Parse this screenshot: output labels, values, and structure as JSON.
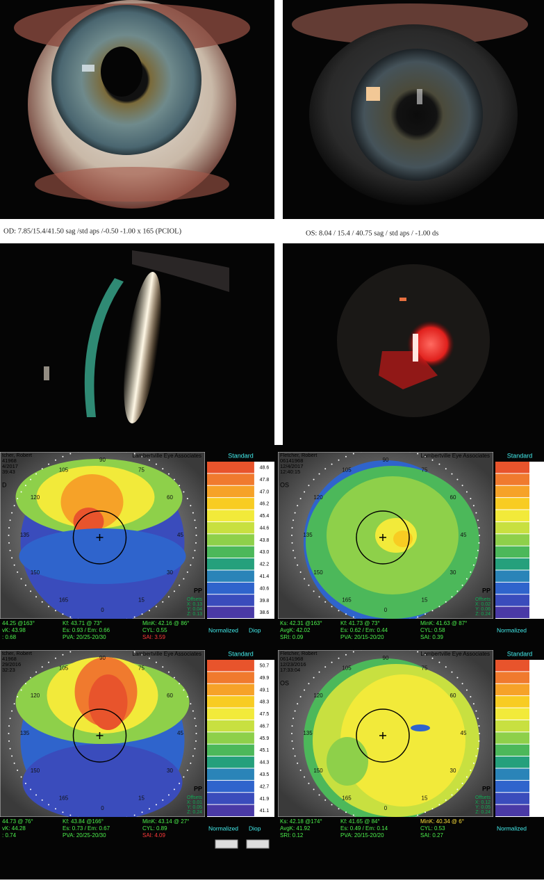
{
  "captions": [
    "OD: 7.85/15.4/41.50 sag  /std aps /-0.50 -1.00 x 165  (PCIOL)",
    "OS: 8.04 / 15.4 / 40.75 sag / std aps /  -1.00 ds"
  ],
  "angle_labels": [
    "90",
    "105",
    "120",
    "135",
    "150",
    "165",
    "0",
    "15",
    "30",
    "45",
    "60",
    "75"
  ],
  "topography": [
    {
      "header": [
        "tcher, Robert",
        "41968",
        "4/2017",
        "39:43"
      ],
      "clinic": "Lambertville Eye Associates",
      "eye": "D",
      "pp": "PP",
      "scale_title": "Standard",
      "scale_labels": [
        "48.6",
        "47.8",
        "47.0",
        "46.2",
        "45.4",
        "44.6",
        "43.8",
        "43.0",
        "42.2",
        "41.4",
        "40.6",
        "39.8",
        "38.6"
      ],
      "offsets": [
        "Offsets",
        "X: 0.13",
        "Y: 0.04",
        "Z: 0.13"
      ],
      "rows": [
        [
          "44.25 @163°",
          "Kf: 43.71 @ 73°",
          "MinK: 42.16 @ 86°"
        ],
        [
          "vK: 43.98",
          "Es: 0.93 / Em: 0.66",
          "CYL: 0.55"
        ],
        [
          ": 0.68",
          "PVA: 20/25-20/30",
          {
            "text": "SAI: 3.59",
            "color": "#ff3b3b"
          }
        ]
      ],
      "footer": [
        "Normalized",
        "Diop"
      ]
    },
    {
      "header": [
        "Fletcher, Robert",
        "06141968",
        "12/4/2017",
        "12:40:15"
      ],
      "clinic": "Lambertville Eye Associates",
      "eye": "OS",
      "pp": "PP",
      "scale_title": "Standard",
      "scale_labels": [],
      "offsets": [
        "Offsets",
        "X: 0.02",
        "Y: 0.06",
        "Z: 0.24"
      ],
      "rows": [
        [
          "Ks: 42.31 @163°",
          "Kf: 41.73 @ 73°",
          "MinK: 41.63 @ 87°"
        ],
        [
          "AvgK: 42.02",
          "Es: 0.62 / Em: 0.44",
          "CYL: 0.58"
        ],
        [
          "SRI: 0.09",
          "PVA: 20/15-20/20",
          "SAI: 0.39"
        ]
      ],
      "footer": [
        "Normalized"
      ]
    },
    {
      "header": [
        "tcher, Robert",
        "41968",
        "29/2016",
        "32:23"
      ],
      "clinic": "Lambertville Eye Associates",
      "eye": "",
      "pp": "PP",
      "scale_title": "Standard",
      "scale_labels": [
        "50.7",
        "49.9",
        "49.1",
        "48.3",
        "47.5",
        "46.7",
        "45.9",
        "45.1",
        "44.3",
        "43.5",
        "42.7",
        "41.9",
        "41.1"
      ],
      "offsets": [
        "Offsets",
        "X: 0.01",
        "Y: 0.05",
        "Z: 0.24"
      ],
      "rows": [
        [
          "44.73 @ 76°",
          "Kf: 43.84 @166°",
          "MinK: 43.14 @ 27°"
        ],
        [
          "vK: 44.28",
          "Es: 0.73 / Em: 0.67",
          "CYL: 0.89"
        ],
        [
          ": 0.74",
          "PVA: 20/25-20/30",
          {
            "text": "SAI: 4.09",
            "color": "#ff3b3b"
          }
        ]
      ],
      "footer": [
        "Normalized",
        "Diop"
      ]
    },
    {
      "header": [
        "Fletcher, Robert",
        "06141968",
        "12/23/2016",
        "17:33:04"
      ],
      "clinic": "Lambertville Eye Associates",
      "eye": "OS",
      "pp": "PP",
      "scale_title": "Standard",
      "scale_labels": [],
      "offsets": [
        "Offsets",
        "X: 0.12",
        "Y: 0.05",
        "Z: 0.24"
      ],
      "rows": [
        [
          "Ks: 42.18 @174°",
          "Kf: 41.65 @ 84°",
          {
            "text": "MinK: 40.34 @  6°",
            "color": "#ffe23b"
          }
        ],
        [
          "AvgK: 41.92",
          "Es: 0.49 / Em: 0.14",
          "CYL: 0.53"
        ],
        [
          "SRI: 0.12",
          "PVA: 20/15-20/20",
          "SAI: 0.27"
        ]
      ],
      "footer": [
        "Normalized"
      ]
    }
  ]
}
